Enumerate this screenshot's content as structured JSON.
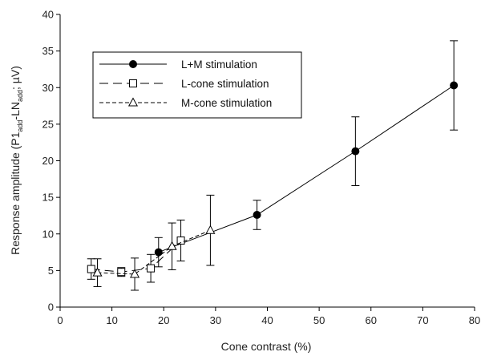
{
  "chart_data": {
    "type": "scatter",
    "xlabel": "Cone contrast (%)",
    "ylabel": {
      "main": "Response amplitude (P1",
      "sub1": "add",
      "mid": "-LN",
      "sub2": "add",
      "end": "; µV)"
    },
    "xlim": [
      0,
      80
    ],
    "ylim": [
      0,
      40
    ],
    "xticks": [
      0,
      10,
      20,
      30,
      40,
      50,
      60,
      70,
      80
    ],
    "yticks": [
      0,
      5,
      10,
      15,
      20,
      25,
      30,
      35,
      40
    ],
    "grid": false,
    "legend_position": "top-left",
    "series": [
      {
        "name": "L+M stimulation",
        "marker": "filled-circle",
        "line": "solid",
        "color": "#000000",
        "points": [
          {
            "x": 19,
            "y": 7.5,
            "err": 2.0
          },
          {
            "x": 38,
            "y": 12.6,
            "err": 2.0
          },
          {
            "x": 57,
            "y": 21.3,
            "err": 4.7
          },
          {
            "x": 76,
            "y": 30.3,
            "err": 6.1
          }
        ]
      },
      {
        "name": "L-cone stimulation",
        "marker": "open-square",
        "line": "long-dash",
        "color": "#000000",
        "points": [
          {
            "x": 6,
            "y": 5.2,
            "err": 1.4
          },
          {
            "x": 11.8,
            "y": 4.8,
            "err": 0.6
          },
          {
            "x": 17.5,
            "y": 5.3,
            "err": 1.9
          },
          {
            "x": 23.3,
            "y": 9.1,
            "err": 2.8
          }
        ]
      },
      {
        "name": "M-cone stimulation",
        "marker": "open-triangle",
        "line": "short-dash",
        "color": "#000000",
        "points": [
          {
            "x": 7.2,
            "y": 4.7,
            "err": 1.9
          },
          {
            "x": 14.4,
            "y": 4.5,
            "err": 2.2
          },
          {
            "x": 21.6,
            "y": 8.3,
            "err": 3.2
          },
          {
            "x": 29,
            "y": 10.5,
            "err": 4.8
          }
        ]
      }
    ]
  }
}
